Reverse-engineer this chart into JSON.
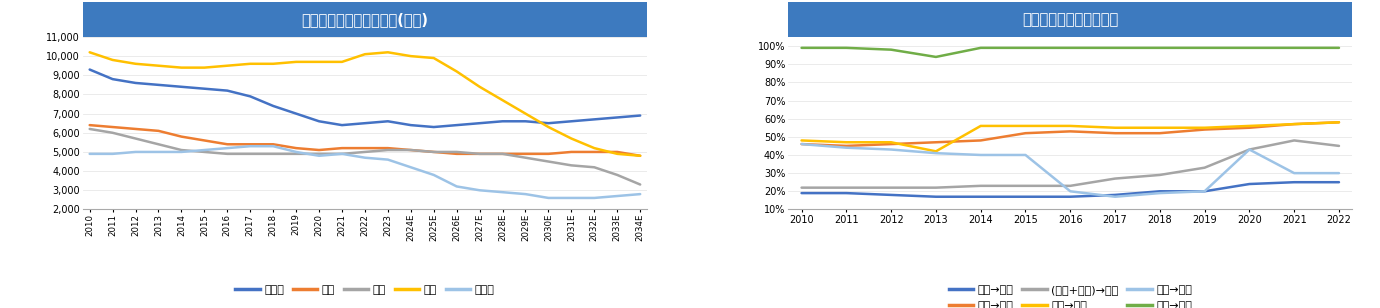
{
  "chart1": {
    "title": "中国教育分学段适龄人口(万人)",
    "title_bg": "#3d7abf",
    "title_color": "white",
    "xlabels": [
      "2010",
      "2011",
      "2012",
      "2013",
      "2014",
      "2015",
      "2016",
      "2017",
      "2018",
      "2019",
      "2020",
      "2021",
      "2022",
      "2023",
      "2024E",
      "2025E",
      "2026E",
      "2027E",
      "2028E",
      "2029E",
      "2030E",
      "2031E",
      "2032E",
      "2033E",
      "2034E"
    ],
    "ylim": [
      2000,
      11000
    ],
    "yticks": [
      2000,
      3000,
      4000,
      5000,
      6000,
      7000,
      8000,
      9000,
      10000,
      11000
    ],
    "series": {
      "本专科": {
        "color": "#4472C4",
        "data": [
          9300,
          8800,
          8600,
          8500,
          8400,
          8300,
          8200,
          7900,
          7400,
          7000,
          6600,
          6400,
          6500,
          6600,
          6400,
          6300,
          6400,
          6500,
          6600,
          6600,
          6500,
          6600,
          6700,
          6800,
          6900
        ]
      },
      "高中": {
        "color": "#ED7D31",
        "data": [
          6400,
          6300,
          6200,
          6100,
          5800,
          5600,
          5400,
          5400,
          5400,
          5200,
          5100,
          5200,
          5200,
          5200,
          5100,
          5000,
          4900,
          4900,
          4900,
          4900,
          4900,
          5000,
          5000,
          5000,
          4800
        ]
      },
      "初中": {
        "color": "#A5A5A5",
        "data": [
          6200,
          6000,
          5700,
          5400,
          5100,
          5000,
          4900,
          4900,
          4900,
          4900,
          4900,
          4900,
          5000,
          5100,
          5100,
          5000,
          5000,
          4900,
          4900,
          4700,
          4500,
          4300,
          4200,
          3800,
          3300
        ]
      },
      "小学": {
        "color": "#FFC000",
        "data": [
          10200,
          9800,
          9600,
          9500,
          9400,
          9400,
          9500,
          9600,
          9600,
          9700,
          9700,
          9700,
          10100,
          10200,
          10000,
          9900,
          9200,
          8400,
          7700,
          7000,
          6300,
          5700,
          5200,
          4900,
          4800
        ]
      },
      "幼儿园": {
        "color": "#9DC3E6",
        "data": [
          4900,
          4900,
          5000,
          5000,
          5000,
          5100,
          5200,
          5300,
          5300,
          5000,
          4800,
          4900,
          4700,
          4600,
          4200,
          3800,
          3200,
          3000,
          2900,
          2800,
          2600,
          2600,
          2600,
          2700,
          2800
        ]
      }
    },
    "legend": [
      "本专科",
      "高中",
      "初中",
      "小学",
      "幼儿园"
    ]
  },
  "chart2": {
    "title": "中国教育不同阶段升学率",
    "title_bg": "#3d7abf",
    "title_color": "white",
    "xlabels": [
      "2010",
      "2011",
      "2012",
      "2013",
      "2014",
      "2015",
      "2016",
      "2017",
      "2018",
      "2019",
      "2020",
      "2021",
      "2022"
    ],
    "ylim": [
      0.1,
      1.05
    ],
    "yticks": [
      0.1,
      0.2,
      0.3,
      0.4,
      0.5,
      0.6,
      0.7,
      0.8,
      0.9,
      1.0
    ],
    "yticklabels": [
      "10%",
      "20%",
      "30%",
      "40%",
      "50%",
      "60%",
      "70%",
      "80%",
      "90%",
      "100%"
    ],
    "series": {
      "普本→硕士": {
        "color": "#4472C4",
        "data": [
          0.19,
          0.19,
          0.18,
          0.17,
          0.17,
          0.17,
          0.17,
          0.18,
          0.2,
          0.2,
          0.24,
          0.25,
          0.25
        ]
      },
      "普高→普本": {
        "color": "#ED7D31",
        "data": [
          0.46,
          0.45,
          0.46,
          0.47,
          0.48,
          0.52,
          0.53,
          0.52,
          0.52,
          0.54,
          0.55,
          0.57,
          0.58
        ]
      },
      "(普高+中职)→专科": {
        "color": "#A5A5A5",
        "data": [
          0.22,
          0.22,
          0.22,
          0.22,
          0.23,
          0.23,
          0.23,
          0.27,
          0.29,
          0.33,
          0.43,
          0.48,
          0.45
        ]
      },
      "初中→普高": {
        "color": "#FFC000",
        "data": [
          0.48,
          0.47,
          0.47,
          0.42,
          0.56,
          0.56,
          0.56,
          0.55,
          0.55,
          0.55,
          0.56,
          0.57,
          0.58
        ]
      },
      "初中→中职": {
        "color": "#9DC3E6",
        "data": [
          0.46,
          0.44,
          0.43,
          0.41,
          0.4,
          0.4,
          0.2,
          0.17,
          0.19,
          0.2,
          0.43,
          0.3,
          0.3
        ]
      },
      "小学→初中": {
        "color": "#70AD47",
        "data": [
          0.99,
          0.99,
          0.98,
          0.94,
          0.99,
          0.99,
          0.99,
          0.99,
          0.99,
          0.99,
          0.99,
          0.99,
          0.99
        ]
      }
    },
    "legend_row1": [
      "普本→硕士",
      "普高→普本",
      "(普高+中职)→专科"
    ],
    "legend_row2": [
      "初中→普高",
      "初中→中职",
      "小学→初中"
    ]
  },
  "background_color": "#ffffff",
  "fig_width": 13.8,
  "fig_height": 3.08,
  "dpi": 100
}
